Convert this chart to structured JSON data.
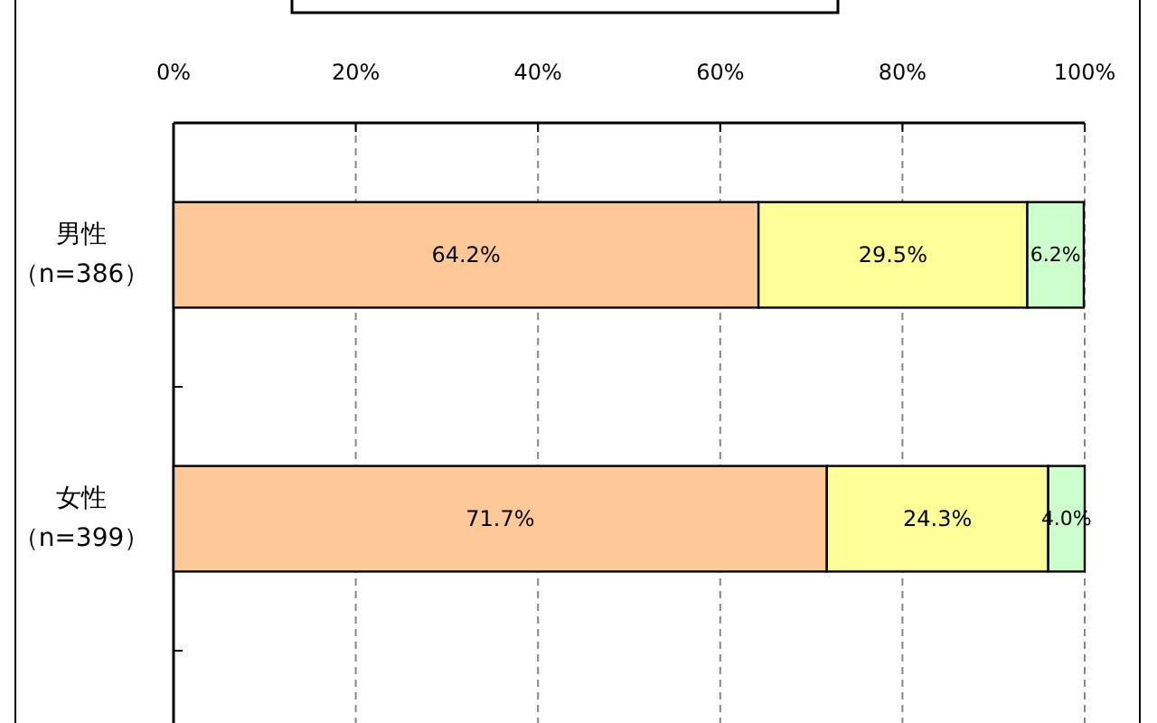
{
  "chart_data": {
    "type": "bar",
    "orientation": "horizontal",
    "stacked": true,
    "categories": [
      "男性（n=386）",
      "女性（n=399）"
    ],
    "series": [
      {
        "color": "#ffc899",
        "values": [
          64.2,
          71.7
        ],
        "value_labels": [
          "64.2%",
          "71.7%"
        ]
      },
      {
        "color": "#ffff99",
        "values": [
          29.5,
          24.3
        ],
        "value_labels": [
          "29.5%",
          "24.3%"
        ]
      },
      {
        "color": "#ccffcc",
        "values": [
          6.2,
          4.0
        ],
        "value_labels": [
          "6.2%",
          "4.0%"
        ]
      }
    ],
    "xlim": [
      0,
      100
    ],
    "xticks": [
      {
        "value": 0,
        "label": "0%"
      },
      {
        "value": 20,
        "label": "20%"
      },
      {
        "value": 40,
        "label": "40%"
      },
      {
        "value": 60,
        "label": "60%"
      },
      {
        "value": 80,
        "label": "80%"
      },
      {
        "value": 100,
        "label": "100%"
      }
    ],
    "grid": "x"
  }
}
